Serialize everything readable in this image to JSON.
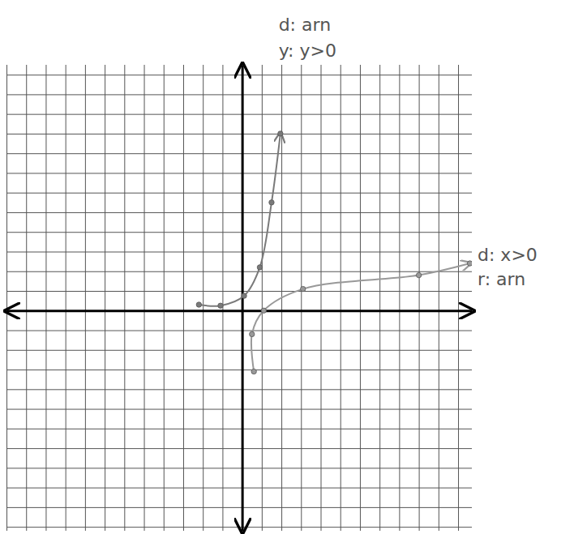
{
  "chart_data": {
    "type": "line",
    "annotations": [
      "d: arn",
      "y: y>0",
      "d: x>0",
      "r: arn"
    ],
    "xlim": [
      -12,
      11.7
    ],
    "ylim": [
      -11.2,
      12.5
    ],
    "xticks": [
      -12,
      -11,
      -10,
      -9,
      -8,
      -7,
      -6,
      -5,
      -4,
      -3,
      -2,
      -1,
      0,
      1,
      2,
      3,
      4,
      5,
      6,
      7,
      8,
      9,
      10,
      11
    ],
    "yticks": [
      -11,
      -10,
      -9,
      -8,
      -7,
      -6,
      -5,
      -4,
      -3,
      -2,
      -1,
      0,
      1,
      2,
      3,
      4,
      5,
      6,
      7,
      8,
      9,
      10,
      11,
      12
    ],
    "grid": true,
    "tick_labels": false,
    "series": [
      {
        "color": "#7a7a7a",
        "marker": "circle",
        "x": [
          -2.2,
          -1.1,
          0.1,
          0.9,
          1.5,
          1.95
        ],
        "values": [
          0.3,
          0.25,
          0.75,
          2.2,
          5.5,
          9
        ]
      },
      {
        "color": "#999999",
        "marker": "circle",
        "x": [
          0.6,
          0.5,
          1.1,
          3.1,
          9,
          11.6
        ],
        "values": [
          -3.1,
          -1.2,
          0,
          1.1,
          1.8,
          2.4
        ]
      }
    ]
  }
}
